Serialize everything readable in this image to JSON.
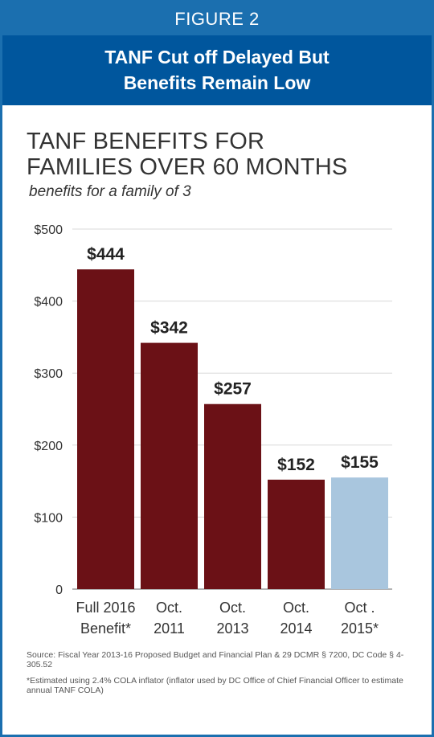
{
  "header": {
    "figure_label": "FIGURE 2",
    "title_line1": "TANF Cut off Delayed But",
    "title_line2": "Benefits Remain Low"
  },
  "colors": {
    "frame": "#1b6faf",
    "title_bar": "#00569d",
    "bar_actual": "#6b1116",
    "bar_estimated": "#a9c6de"
  },
  "chart_data": {
    "type": "bar",
    "title_line1": "TANF BENEFITS FOR",
    "title_line2": "FAMILIES OVER 60 MONTHS",
    "subtitle": "benefits for a family of 3",
    "categories": [
      [
        "Full 2016",
        "Benefit*"
      ],
      [
        "Oct.",
        "2011"
      ],
      [
        "Oct.",
        "2013"
      ],
      [
        "Oct.",
        "2014"
      ],
      [
        "Oct .",
        "2015*"
      ]
    ],
    "values": [
      444,
      342,
      257,
      152,
      155
    ],
    "data_labels": [
      "$444",
      "$342",
      "$257",
      "$152",
      "$155"
    ],
    "estimated": [
      false,
      false,
      false,
      false,
      true
    ],
    "yticks": [
      0,
      100,
      200,
      300,
      400,
      500
    ],
    "ytick_labels": [
      "0",
      "$100",
      "$200",
      "$300",
      "$400",
      "$500"
    ],
    "ylim": [
      0,
      500
    ],
    "grid": true
  },
  "footnotes": {
    "source": "Source: Fiscal Year 2013-16 Proposed Budget and Financial Plan & 29 DCMR § 7200, DC Code § 4-305.52",
    "estimate_note": "*Estimated using 2.4% COLA inflator (inflator used by DC Office of Chief Financial Officer to estimate annual TANF COLA)"
  }
}
